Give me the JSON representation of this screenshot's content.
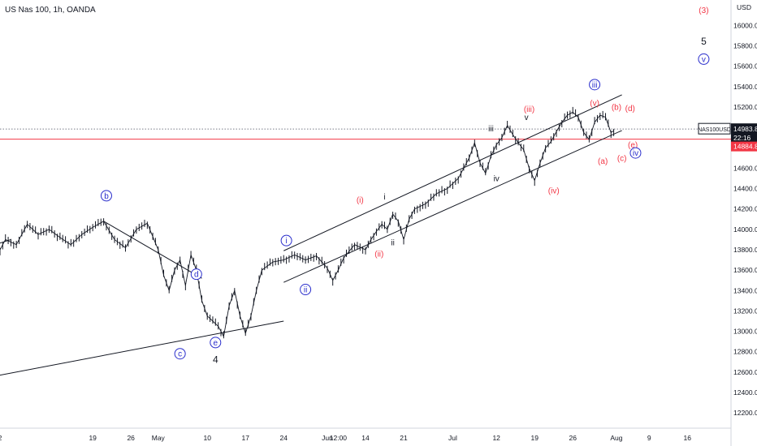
{
  "header": {
    "title": "US Nas 100, 1h, OANDA"
  },
  "axis": {
    "currency": "USD"
  },
  "chart_data": {
    "type": "line",
    "title": "US Nas 100, 1h, OANDA",
    "ylabel": "USD",
    "ylim": [
      12050,
      16250
    ],
    "y_ticks": [
      "16000.0",
      "15800.0",
      "15600.0",
      "15400.0",
      "15200.0",
      "15000.0",
      "14800.0",
      "14600.0",
      "14400.0",
      "14200.0",
      "14000.0",
      "13800.0",
      "13600.0",
      "13400.0",
      "13200.0",
      "13000.0",
      "12800.0",
      "12600.0",
      "12400.0",
      "12200.0"
    ],
    "x_ticks": [
      "2",
      "19",
      "26",
      "May",
      "10",
      "17",
      "24",
      "Jun",
      "12:00",
      "14",
      "21",
      "Jul",
      "12",
      "19",
      "26",
      "Aug",
      "9",
      "16"
    ],
    "x_tick_units": [
      0,
      17,
      24,
      29,
      38,
      45,
      52,
      60,
      62,
      67,
      74,
      83,
      91,
      98,
      105,
      113,
      119,
      126
    ],
    "x_range": [
      0,
      134
    ],
    "series": [
      {
        "name": "",
        "x": [
          0,
          1,
          3,
          5,
          7,
          9,
          11,
          13,
          15,
          17,
          19,
          21,
          23,
          25,
          27,
          29,
          30,
          31,
          32,
          33,
          34,
          35,
          36,
          37,
          38,
          39,
          40,
          41,
          42,
          43,
          44,
          45,
          46,
          47,
          48,
          50,
          52,
          54,
          56,
          58,
          60,
          61,
          62,
          63,
          65,
          67,
          68,
          69,
          70,
          71,
          72,
          73,
          74,
          75,
          76,
          78,
          80,
          82,
          84,
          86,
          87,
          88,
          89,
          90,
          91,
          92,
          93,
          94,
          95,
          96,
          97,
          98,
          99,
          100,
          101,
          102,
          103,
          104,
          105,
          106,
          107,
          108,
          109,
          110,
          111,
          112,
          113
        ],
        "values": [
          13800,
          13900,
          13850,
          14050,
          13950,
          14000,
          13920,
          13850,
          13950,
          14020,
          14080,
          13900,
          13820,
          14000,
          14060,
          13800,
          13550,
          13400,
          13600,
          13700,
          13450,
          13750,
          13600,
          13300,
          13150,
          13100,
          13050,
          12950,
          13250,
          13400,
          13150,
          12980,
          13150,
          13400,
          13600,
          13680,
          13700,
          13750,
          13700,
          13740,
          13620,
          13500,
          13600,
          13720,
          13850,
          13800,
          13900,
          13980,
          14050,
          14000,
          14150,
          14080,
          13900,
          14100,
          14200,
          14250,
          14350,
          14400,
          14500,
          14700,
          14850,
          14650,
          14550,
          14720,
          14830,
          14900,
          15020,
          14930,
          14850,
          14780,
          14600,
          14480,
          14650,
          14800,
          14860,
          14960,
          15050,
          15120,
          15150,
          15100,
          14950,
          14880,
          15050,
          15120,
          15100,
          14950,
          14984
        ],
        "style": "candlestick"
      }
    ],
    "trendlines": [
      {
        "x": [
          0,
          52
        ],
        "y": [
          12570,
          13100
        ]
      },
      {
        "x": [
          19,
          37
        ],
        "y": [
          14080,
          13520
        ]
      },
      {
        "x": [
          52,
          114
        ],
        "y": [
          13790,
          15320
        ]
      },
      {
        "x": [
          52,
          114
        ],
        "y": [
          13480,
          14970
        ]
      },
      {
        "x": [
          -5,
          2
        ],
        "y": [
          13780,
          13900
        ]
      }
    ],
    "horizontal_levels": [
      {
        "price": 14983.8,
        "style": "dotted",
        "color": "#787b86"
      },
      {
        "price": 14884.8,
        "style": "solid",
        "color": "#f23645"
      }
    ],
    "annotations": [
      {
        "text": "b",
        "x": 19.5,
        "y": 14330,
        "circled": true,
        "color": "#2a2ecc"
      },
      {
        "text": "c",
        "x": 33.0,
        "y": 12780,
        "circled": true,
        "color": "#2a2ecc"
      },
      {
        "text": "d",
        "x": 36.0,
        "y": 13560,
        "circled": true,
        "color": "#2a2ecc"
      },
      {
        "text": "e",
        "x": 39.5,
        "y": 12890,
        "circled": true,
        "color": "#2a2ecc"
      },
      {
        "text": "4",
        "x": 39.5,
        "y": 12720,
        "circled": false,
        "color": "#131722"
      },
      {
        "text": "i",
        "x": 52.5,
        "y": 13890,
        "circled": true,
        "color": "#2a2ecc"
      },
      {
        "text": "ii",
        "x": 56.0,
        "y": 13410,
        "circled": true,
        "color": "#2a2ecc"
      },
      {
        "text": "(i)",
        "x": 66.0,
        "y": 14290,
        "circled": false,
        "color": "#f23645"
      },
      {
        "text": "(ii)",
        "x": 69.5,
        "y": 13760,
        "circled": false,
        "color": "#f23645"
      },
      {
        "text": "i",
        "x": 70.5,
        "y": 14320,
        "circled": false,
        "color": "#131722"
      },
      {
        "text": "ii",
        "x": 72.0,
        "y": 13870,
        "circled": false,
        "color": "#131722"
      },
      {
        "text": "iii",
        "x": 90.0,
        "y": 14990,
        "circled": false,
        "color": "#131722"
      },
      {
        "text": "iv",
        "x": 91.0,
        "y": 14500,
        "circled": false,
        "color": "#131722"
      },
      {
        "text": "(iii)",
        "x": 97.0,
        "y": 15180,
        "circled": false,
        "color": "#f23645"
      },
      {
        "text": "v",
        "x": 96.5,
        "y": 15100,
        "circled": false,
        "color": "#131722"
      },
      {
        "text": "(iv)",
        "x": 101.5,
        "y": 14380,
        "circled": false,
        "color": "#f23645"
      },
      {
        "text": "iii",
        "x": 109.0,
        "y": 15420,
        "circled": true,
        "color": "#2a2ecc"
      },
      {
        "text": "(v)",
        "x": 109.0,
        "y": 15240,
        "circled": false,
        "color": "#f23645"
      },
      {
        "text": "(a)",
        "x": 110.5,
        "y": 14670,
        "circled": false,
        "color": "#f23645"
      },
      {
        "text": "(b)",
        "x": 113.0,
        "y": 15200,
        "circled": false,
        "color": "#f23645"
      },
      {
        "text": "(c)",
        "x": 114.0,
        "y": 14700,
        "circled": false,
        "color": "#f23645"
      },
      {
        "text": "(d)",
        "x": 115.5,
        "y": 15190,
        "circled": false,
        "color": "#f23645"
      },
      {
        "text": "(e)",
        "x": 116.0,
        "y": 14830,
        "circled": false,
        "color": "#f23645"
      },
      {
        "text": "iv",
        "x": 116.5,
        "y": 14750,
        "circled": true,
        "color": "#2a2ecc"
      },
      {
        "text": "(3)",
        "x": 129.0,
        "y": 16150,
        "circled": false,
        "color": "#f23645"
      },
      {
        "text": "5",
        "x": 129.0,
        "y": 15840,
        "circled": false,
        "color": "#131722"
      },
      {
        "text": "v",
        "x": 129.0,
        "y": 15670,
        "circled": true,
        "color": "#2a2ecc"
      }
    ],
    "price_tags": [
      {
        "symbol": "NAS100USD",
        "price": "14983.8",
        "countdown": "22:16",
        "color": "#131722"
      },
      {
        "price": "14884.8",
        "color": "#f23645"
      }
    ],
    "grid": false,
    "legend": "none"
  }
}
